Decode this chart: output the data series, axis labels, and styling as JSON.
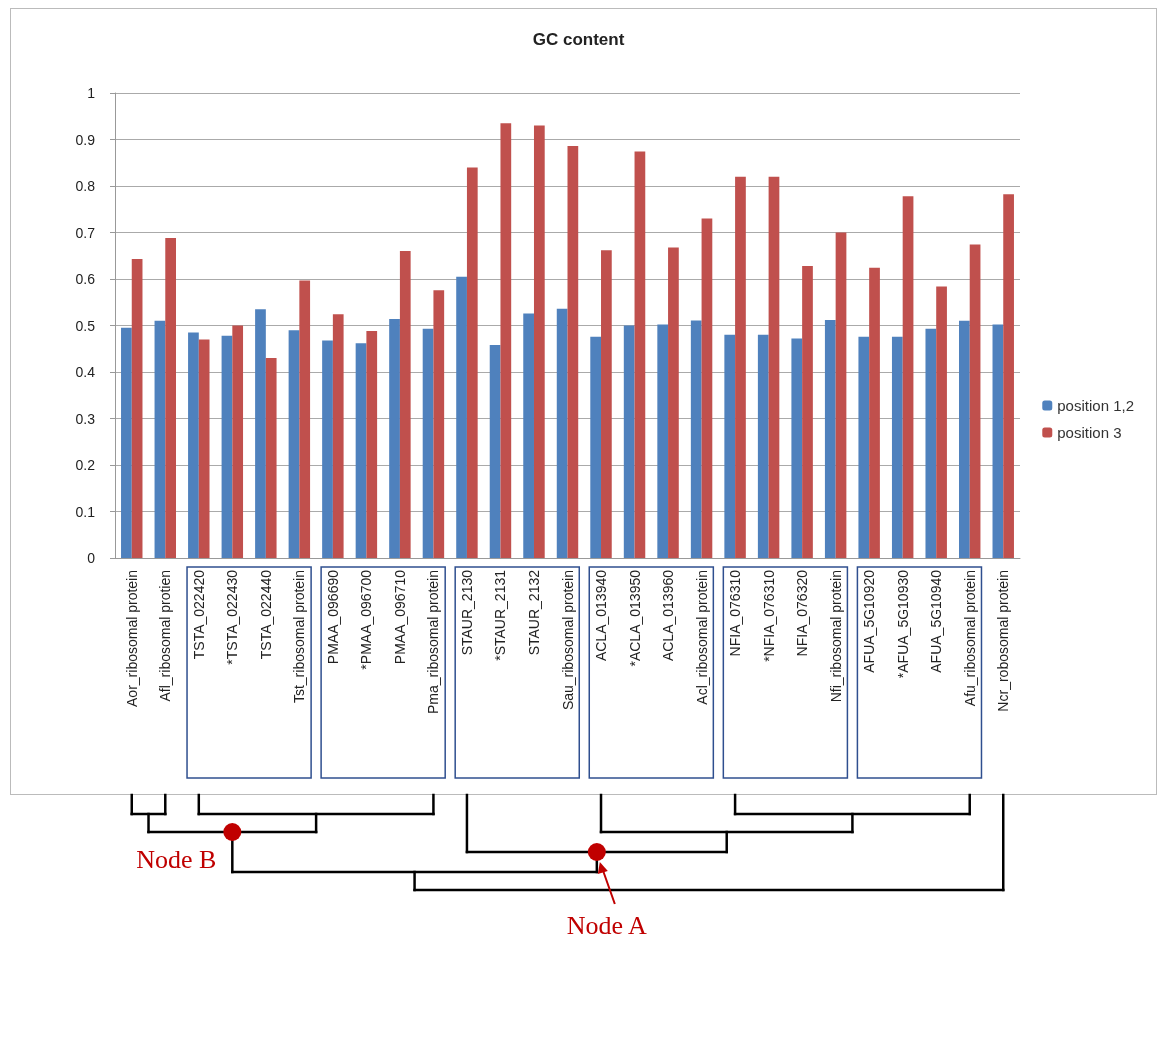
{
  "chart_data": {
    "type": "bar",
    "title": "GC content",
    "categories": [
      "Aor_ribosomal protein",
      "Afl_ribosomal protien",
      "TSTA_022420",
      "*TSTA_022430",
      "TSTA_022440",
      "Tst_ribosomal protein",
      "PMAA_096690",
      "*PMAA_096700",
      "PMAA_096710",
      "Pma_ribosomal protein",
      "STAUR_2130",
      "*STAUR_2131",
      "STAUR_2132",
      "Sau_ribosomal protein",
      "ACLA_013940",
      "*ACLA_013950",
      "ACLA_013960",
      "Acl_ribosomal protein",
      "NFIA_076310",
      "*NFIA_076310",
      "NFIA_076320",
      "Nfi_ribosomal protein",
      "AFUA_5G10920",
      "*AFUA_5G10930",
      "AFUA_5G10940",
      "Afu_ribosomal protein",
      "Ncr_robosomal protein"
    ],
    "series": [
      {
        "name": "position 1,2",
        "color": "#4f81bd",
        "values": [
          0.495,
          0.51,
          0.485,
          0.478,
          0.535,
          0.49,
          0.468,
          0.462,
          0.514,
          0.493,
          0.605,
          0.458,
          0.526,
          0.536,
          0.476,
          0.5,
          0.502,
          0.511,
          0.48,
          0.48,
          0.472,
          0.512,
          0.476,
          0.476,
          0.493,
          0.51,
          0.502
        ]
      },
      {
        "name": "position 3",
        "color": "#c0504d",
        "values": [
          0.643,
          0.688,
          0.47,
          0.5,
          0.43,
          0.597,
          0.524,
          0.488,
          0.66,
          0.576,
          0.84,
          0.935,
          0.93,
          0.886,
          0.662,
          0.874,
          0.668,
          0.73,
          0.82,
          0.82,
          0.628,
          0.7,
          0.624,
          0.778,
          0.584,
          0.674,
          0.782
        ]
      }
    ],
    "ylim": [
      0,
      1
    ],
    "yticks": [
      0,
      0.1,
      0.2,
      0.3,
      0.4,
      0.5,
      0.6,
      0.7,
      0.8,
      0.9,
      1
    ],
    "grid": "y",
    "legend": "right",
    "annotations": [
      "Node A",
      "Node B"
    ]
  }
}
